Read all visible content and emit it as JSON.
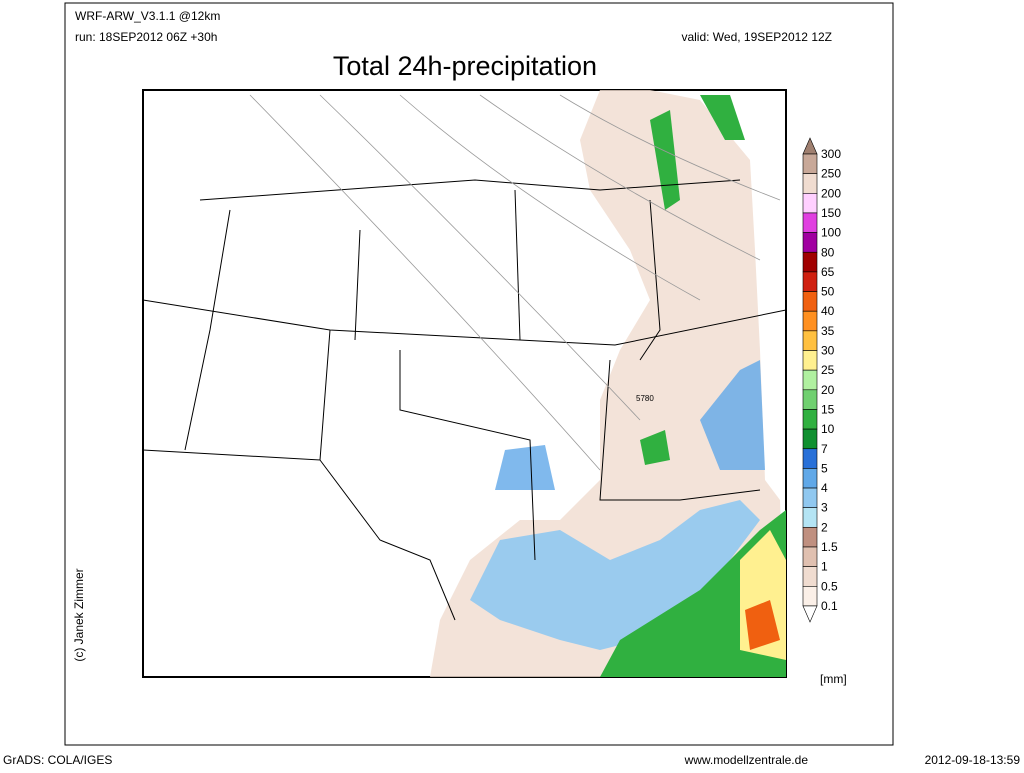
{
  "header": {
    "model": "WRF-ARW_V3.1.1 @12km",
    "run": "run: 18SEP2012 06Z +30h",
    "valid": "valid: Wed, 19SEP2012 12Z",
    "title": "Total 24h-precipitation"
  },
  "map": {
    "label": "5780"
  },
  "colorbar": {
    "unit": "[mm]",
    "levels": [
      300,
      250,
      200,
      150,
      100,
      80,
      65,
      50,
      40,
      35,
      30,
      25,
      20,
      15,
      10,
      7,
      5,
      4,
      3,
      2,
      1.5,
      1,
      0.5,
      0.1
    ],
    "colors": [
      "#a08070",
      "#c8a898",
      "#f0dcd0",
      "#ffd0ff",
      "#e040e0",
      "#a000a0",
      "#a00000",
      "#d02010",
      "#f06010",
      "#ff9020",
      "#ffc040",
      "#fff090",
      "#b0f0a0",
      "#70d070",
      "#30b040",
      "#109030",
      "#2870d8",
      "#60a8e8",
      "#90c8f0",
      "#b4e4f4",
      "#c09080",
      "#e0c0b0",
      "#f0dcd0",
      "#fbf0e8",
      "#ffffff"
    ]
  },
  "credit": "(c) Janek Zimmer",
  "footer": {
    "left": "GrADS: COLA/IGES",
    "center": "www.modellzentrale.de",
    "right": "2012-09-18-13:59"
  }
}
